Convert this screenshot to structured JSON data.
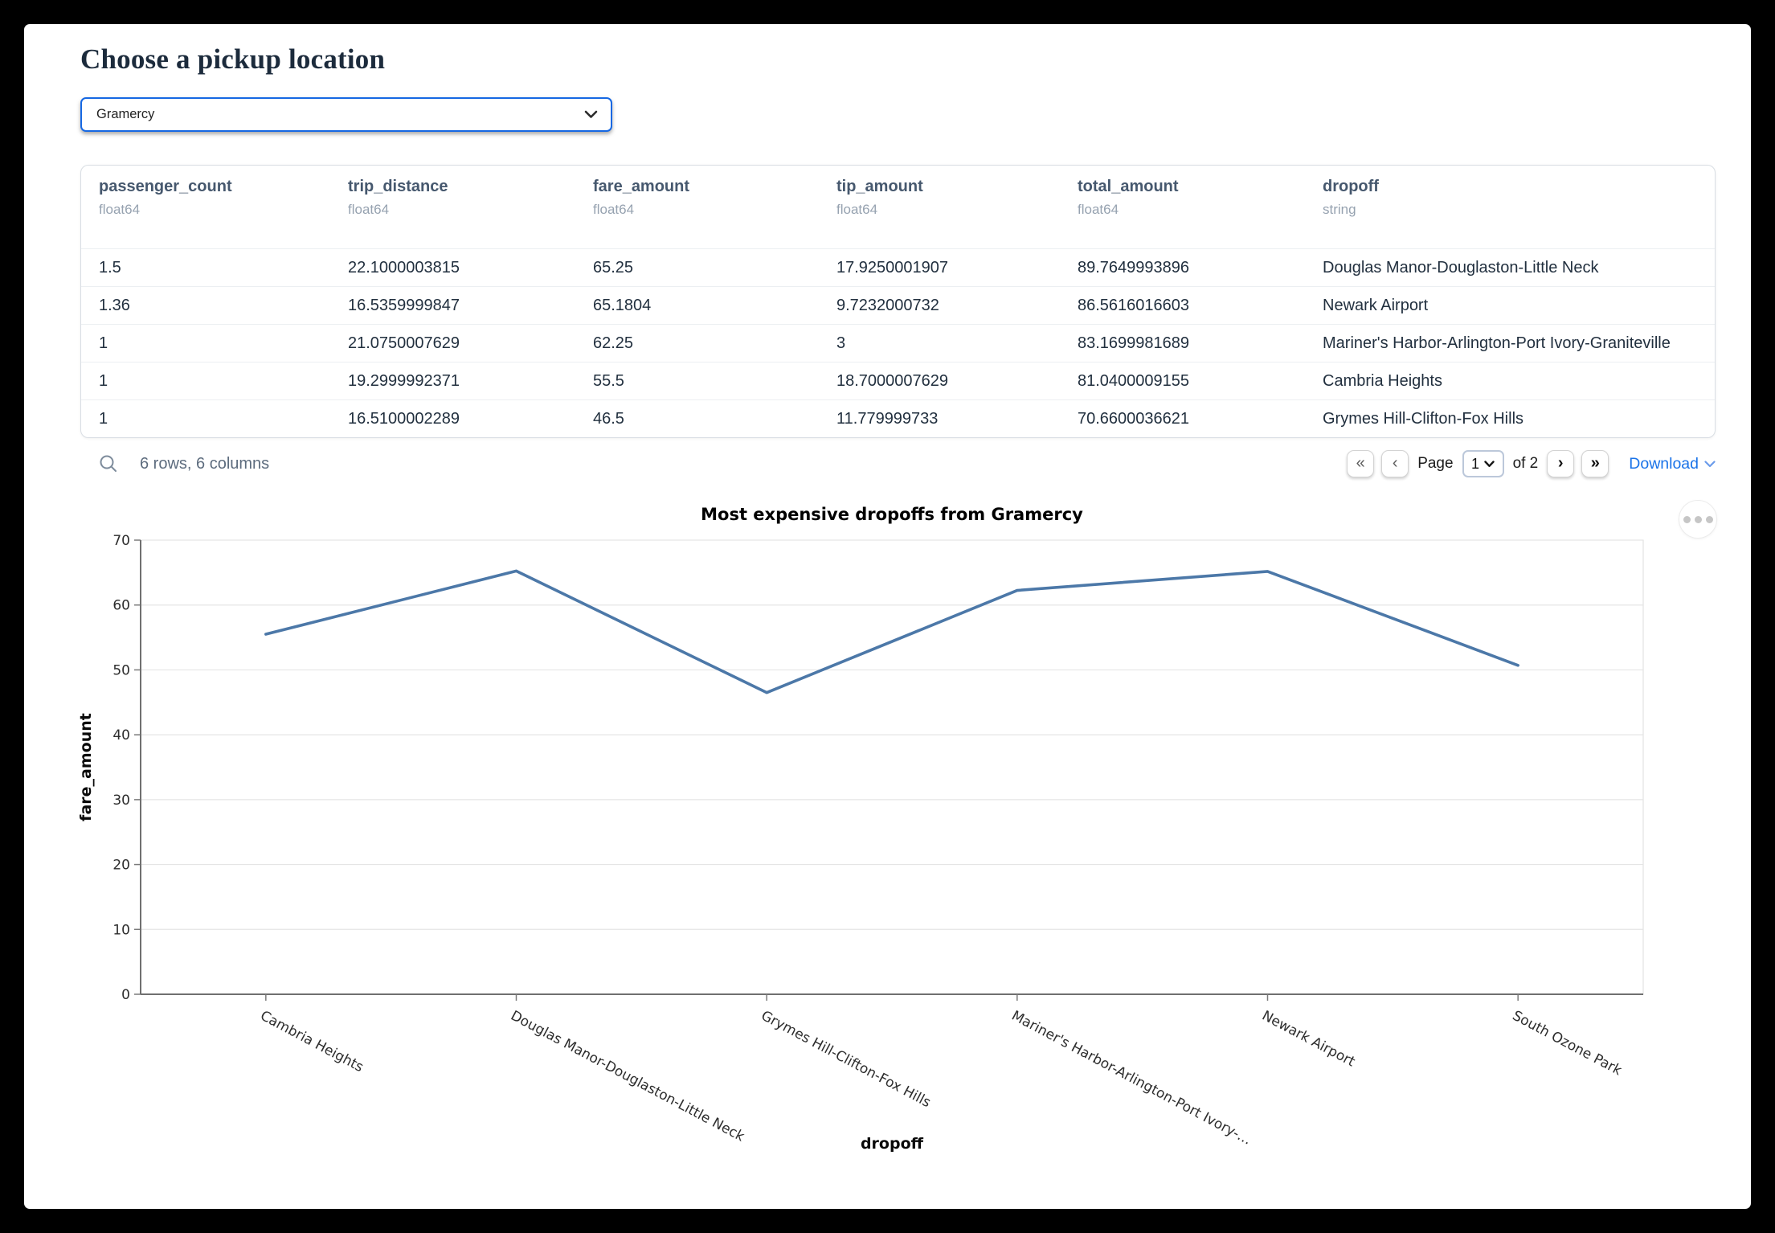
{
  "page": {
    "title": "Choose a pickup location"
  },
  "pickup": {
    "value": "Gramercy"
  },
  "colors": {
    "accent_blue": "#1a73e8",
    "select_border_blue": "#1668e3",
    "line_blue": "#4c78a8"
  },
  "table": {
    "columns": [
      {
        "name": "passenger_count",
        "dtype": "float64"
      },
      {
        "name": "trip_distance",
        "dtype": "float64"
      },
      {
        "name": "fare_amount",
        "dtype": "float64"
      },
      {
        "name": "tip_amount",
        "dtype": "float64"
      },
      {
        "name": "total_amount",
        "dtype": "float64"
      },
      {
        "name": "dropoff",
        "dtype": "string"
      }
    ],
    "rows": [
      [
        "1.5",
        "22.1000003815",
        "65.25",
        "17.9250001907",
        "89.7649993896",
        "Douglas Manor-Douglaston-Little Neck"
      ],
      [
        "1.36",
        "16.5359999847",
        "65.1804",
        "9.7232000732",
        "86.5616016603",
        "Newark Airport"
      ],
      [
        "1",
        "21.0750007629",
        "62.25",
        "3",
        "83.1699981689",
        "Mariner's Harbor-Arlington-Port Ivory-Graniteville"
      ],
      [
        "1",
        "19.2999992371",
        "55.5",
        "18.7000007629",
        "81.0400009155",
        "Cambria Heights"
      ],
      [
        "1",
        "16.5100002289",
        "46.5",
        "11.779999733",
        "70.6600036621",
        "Grymes Hill-Clifton-Fox Hills"
      ]
    ],
    "summary": "6 rows, 6 columns",
    "pagination": {
      "first_glyph": "«",
      "prev_glyph": "‹",
      "page_label": "Page",
      "current_page": "1",
      "of_label": "of 2",
      "next_glyph": "›",
      "last_glyph": "»",
      "download_label": "Download"
    }
  },
  "chart_data": {
    "type": "line",
    "title": "Most expensive dropoffs from Gramercy",
    "xlabel": "dropoff",
    "ylabel": "fare_amount",
    "categories": [
      "Cambria Heights",
      "Douglas Manor-Douglaston-Little Neck",
      "Grymes Hill-Clifton-Fox Hills",
      "Mariner's Harbor-Arlington-Port Ivory-…",
      "Newark Airport",
      "South Ozone Park"
    ],
    "values": [
      55.5,
      65.25,
      46.5,
      62.25,
      65.1804,
      50.7
    ],
    "ylim": [
      0,
      70
    ],
    "yticks": [
      0,
      10,
      20,
      30,
      40,
      50,
      60,
      70
    ],
    "grid": true,
    "legend": "none",
    "line_color": "#4c78a8"
  }
}
